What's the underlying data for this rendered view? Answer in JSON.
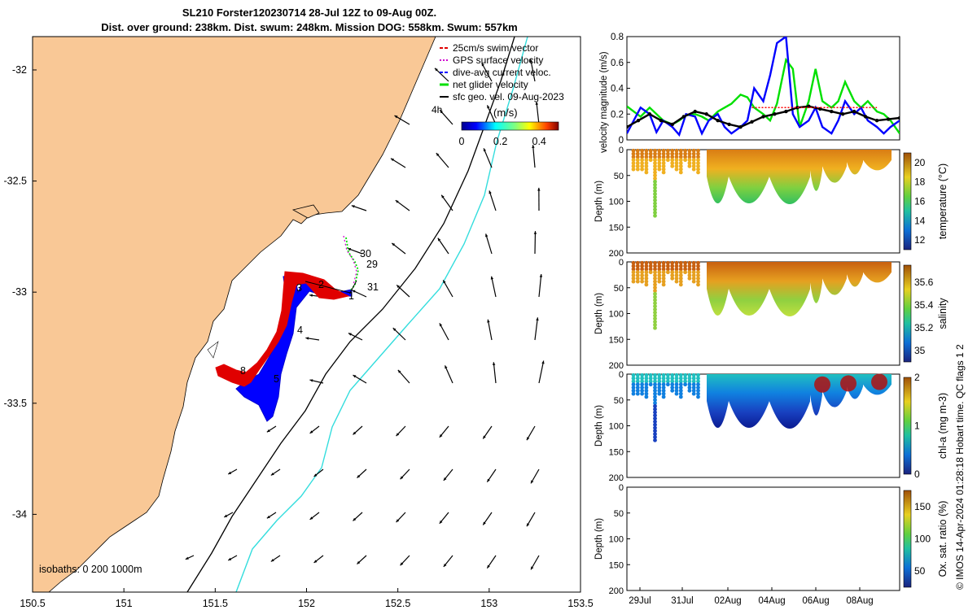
{
  "title_line1": "SL210 Forster120230714 28-Jul 12Z to 09-Aug 00Z.",
  "title_line2": "Dist. over ground: 238km. Dist. swum: 248km. Mission DOG: 558km. Swum: 557km",
  "credit": "© IMOS 14-Apr-2024 01:28:18 Hobart time. QC flags 1  2",
  "colors": {
    "land": "#f9c896",
    "swim": "#e00000",
    "gps": "#d000d0",
    "dive": "#0000ff",
    "net": "#00e000",
    "geo": "#000000",
    "isobath200": "#000000",
    "isobath1000": "#33dddd"
  },
  "chart_data": [
    {
      "type": "scatter",
      "title": "",
      "xlim": [
        150.5,
        153.5
      ],
      "ylim": [
        -34.35,
        -31.85
      ],
      "x_ticks": [
        "150.5",
        "151",
        "151.5",
        "152",
        "152.5",
        "153",
        "153.5"
      ],
      "y_ticks": [
        "-32",
        "-32.5",
        "-33",
        "-33.5",
        "-34"
      ],
      "legend": [
        "25cm/s swim vector",
        "GPS surface velocity",
        "dive-avg current veloc.",
        "net glider velocity",
        "sfc geo. vel. 09-Aug-2023"
      ],
      "legend_extra": "4h",
      "colorbar": {
        "label": "(m/s)",
        "ticks": [
          "0",
          "0.2",
          "0.4"
        ],
        "range": [
          0,
          0.5
        ]
      },
      "isobath_label": "isobaths: 0   200  1000m",
      "day_labels": [
        "30",
        "29",
        "31",
        "1",
        "2",
        "3",
        "4",
        "5",
        "8"
      ]
    },
    {
      "type": "line",
      "title": "",
      "ylabel": "velocity magnitude (m/s)",
      "ylim": [
        0,
        0.8
      ],
      "y_ticks": [
        "0",
        "0.2",
        "0.4",
        "0.6",
        "0.8"
      ],
      "xlim": [
        0,
        12
      ],
      "series": [
        {
          "color": "#00e000",
          "x": [
            0.0,
            0.3,
            0.6,
            1.0,
            1.3,
            1.6,
            2.0,
            2.3,
            2.6,
            3.0,
            3.3,
            3.6,
            4.0,
            4.3,
            4.6,
            5.0,
            5.3,
            5.6,
            6.0,
            6.3,
            6.6,
            7.0,
            7.3,
            7.6,
            8.0,
            8.3,
            8.6,
            9.0,
            9.3,
            9.6,
            10.0,
            10.3,
            10.6,
            11.0,
            11.3,
            11.6,
            12.0
          ],
          "values": [
            0.26,
            0.22,
            0.18,
            0.25,
            0.2,
            0.15,
            0.12,
            0.15,
            0.19,
            0.2,
            0.18,
            0.15,
            0.22,
            0.25,
            0.28,
            0.35,
            0.33,
            0.25,
            0.2,
            0.15,
            0.28,
            0.62,
            0.55,
            0.1,
            0.3,
            0.55,
            0.3,
            0.25,
            0.3,
            0.45,
            0.3,
            0.25,
            0.3,
            0.22,
            0.2,
            0.15,
            0.05
          ]
        },
        {
          "color": "#0000ff",
          "x": [
            0.0,
            0.3,
            0.6,
            1.0,
            1.3,
            1.6,
            2.0,
            2.3,
            2.6,
            3.0,
            3.3,
            3.6,
            4.0,
            4.3,
            4.6,
            5.0,
            5.3,
            5.6,
            6.0,
            6.3,
            6.6,
            7.0,
            7.3,
            7.6,
            8.0,
            8.3,
            8.6,
            9.0,
            9.3,
            9.6,
            10.0,
            10.3,
            10.6,
            11.0,
            11.3,
            11.6,
            12.0
          ],
          "values": [
            0.05,
            0.15,
            0.25,
            0.2,
            0.06,
            0.15,
            0.1,
            0.04,
            0.2,
            0.18,
            0.05,
            0.15,
            0.2,
            0.1,
            0.05,
            0.1,
            0.15,
            0.4,
            0.3,
            0.5,
            0.75,
            0.8,
            0.2,
            0.1,
            0.15,
            0.25,
            0.1,
            0.05,
            0.15,
            0.3,
            0.2,
            0.25,
            0.15,
            0.1,
            0.05,
            0.1,
            0.15
          ]
        },
        {
          "color": "#000000",
          "x": [
            0.0,
            0.5,
            1.0,
            1.5,
            2.0,
            2.5,
            3.0,
            3.5,
            4.0,
            4.5,
            5.0,
            5.5,
            6.0,
            6.5,
            7.0,
            7.5,
            8.0,
            8.5,
            9.0,
            9.5,
            10.0,
            10.5,
            11.0,
            11.5,
            12.0
          ],
          "values": [
            0.1,
            0.15,
            0.2,
            0.15,
            0.12,
            0.18,
            0.22,
            0.2,
            0.15,
            0.12,
            0.1,
            0.14,
            0.18,
            0.2,
            0.22,
            0.25,
            0.26,
            0.24,
            0.22,
            0.2,
            0.22,
            0.18,
            0.15,
            0.16,
            0.17
          ]
        },
        {
          "color": "#ff0000",
          "x": [
            5.5,
            6,
            6.5,
            7,
            7.5,
            8,
            8.5,
            9,
            9.5,
            10,
            10.5,
            11
          ],
          "values": [
            0.25,
            0.25,
            0.25,
            0.25,
            0.25,
            0.25,
            0.25,
            0.25,
            0.25,
            0.25,
            0.25,
            0.25
          ]
        }
      ]
    },
    {
      "type": "heatmap",
      "title": "",
      "ylabel": "Depth (m)",
      "y_ticks": [
        "0",
        "50",
        "100",
        "150",
        "200"
      ],
      "colorbar": {
        "label": "temperature (°C)",
        "ticks": [
          "12",
          "14",
          "16",
          "18",
          "20"
        ],
        "range": [
          11,
          21
        ]
      }
    },
    {
      "type": "heatmap",
      "title": "",
      "ylabel": "Depth (m)",
      "y_ticks": [
        "0",
        "50",
        "100",
        "150",
        "200"
      ],
      "colorbar": {
        "label": "salinity",
        "ticks": [
          "35",
          "35.2",
          "35.4",
          "35.6"
        ],
        "range": [
          34.9,
          35.75
        ]
      }
    },
    {
      "type": "heatmap",
      "title": "",
      "ylabel": "Depth (m)",
      "y_ticks": [
        "0",
        "50",
        "100",
        "150",
        "200"
      ],
      "colorbar": {
        "label": "chl-a (mg m-3)",
        "ticks": [
          "0",
          "1",
          "2"
        ],
        "range": [
          0,
          2
        ]
      }
    },
    {
      "type": "heatmap",
      "title": "",
      "ylabel": "Depth (m)",
      "y_ticks": [
        "0",
        "50",
        "100",
        "150",
        "200"
      ],
      "colorbar": {
        "label": "Ox. sat. ratio (%)",
        "ticks": [
          "50",
          "100",
          "150"
        ],
        "range": [
          25,
          175
        ]
      },
      "x_ticks": [
        "29Jul",
        "31Jul",
        "02Aug",
        "04Aug",
        "06Aug",
        "08Aug"
      ]
    }
  ]
}
